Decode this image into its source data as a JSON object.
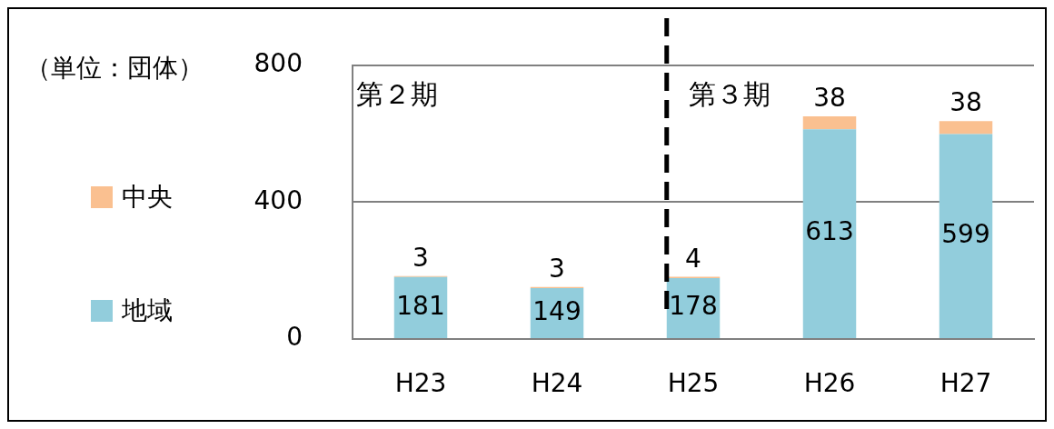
{
  "chart_data": {
    "type": "bar",
    "ylabel": "（単位：団体）",
    "categories": [
      "H23",
      "H24",
      "H25",
      "H26",
      "H27"
    ],
    "stacked": true,
    "series": [
      {
        "name": "地域",
        "color": "#92cddc",
        "values": [
          181,
          149,
          178,
          613,
          599
        ]
      },
      {
        "name": "中央",
        "color": "#fac090",
        "values": [
          3,
          3,
          4,
          38,
          38
        ]
      }
    ],
    "ylim": [
      0,
      800
    ],
    "yticks": [
      0,
      400,
      800
    ],
    "grid": "y",
    "legend": "left",
    "data_labels": true,
    "ref_lines": [
      {
        "axis": "x",
        "value": "H25",
        "line_style": "dashed",
        "color": "#000000"
      }
    ],
    "annotations": [
      "第２期",
      "第３期"
    ]
  }
}
